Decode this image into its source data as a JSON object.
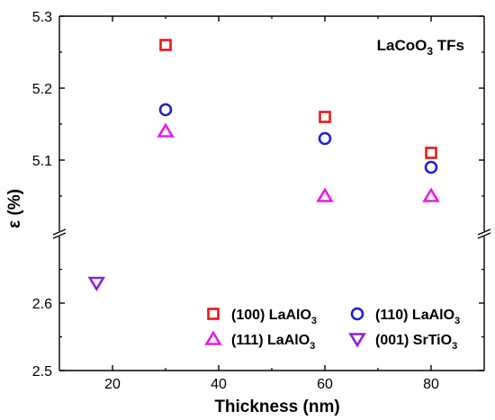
{
  "chart_data": {
    "type": "scatter",
    "title": "LaCoO",
    "title_sub": "3",
    "title_suffix": " TFs",
    "xlabel": "Thickness (nm)",
    "ylabel": "ε (%)",
    "xlim": [
      10,
      90
    ],
    "x_ticks": [
      "20",
      "40",
      "60",
      "80"
    ],
    "y_axis_broken": true,
    "y_segments": [
      {
        "ylim": [
          5.0,
          5.3
        ],
        "ticks": [
          "5.1",
          "5.2",
          "5.3"
        ]
      },
      {
        "ylim": [
          2.5,
          2.7
        ],
        "ticks": [
          "2.5",
          "2.6"
        ]
      }
    ],
    "grid": false,
    "legend_position": "bottom-right",
    "series": [
      {
        "name": "(100) LaAlO",
        "name_sub": "3",
        "marker": "square",
        "color": "#e8191b",
        "points": [
          {
            "x": 30,
            "y": 5.26
          },
          {
            "x": 60,
            "y": 5.16
          },
          {
            "x": 80,
            "y": 5.11
          }
        ]
      },
      {
        "name": "(110) LaAlO",
        "name_sub": "3",
        "marker": "circle",
        "color": "#1f1fd1",
        "points": [
          {
            "x": 30,
            "y": 5.17
          },
          {
            "x": 60,
            "y": 5.13
          },
          {
            "x": 80,
            "y": 5.09
          }
        ]
      },
      {
        "name": "(111) LaAlO",
        "name_sub": "3",
        "marker": "triangle-up",
        "color": "#e81be8",
        "points": [
          {
            "x": 30,
            "y": 5.14
          },
          {
            "x": 60,
            "y": 5.05
          },
          {
            "x": 80,
            "y": 5.05
          }
        ]
      },
      {
        "name": "(001) SrTiO",
        "name_sub": "3",
        "marker": "triangle-down",
        "color": "#8a1fd8",
        "points": [
          {
            "x": 17,
            "y": 2.63
          }
        ]
      }
    ]
  }
}
